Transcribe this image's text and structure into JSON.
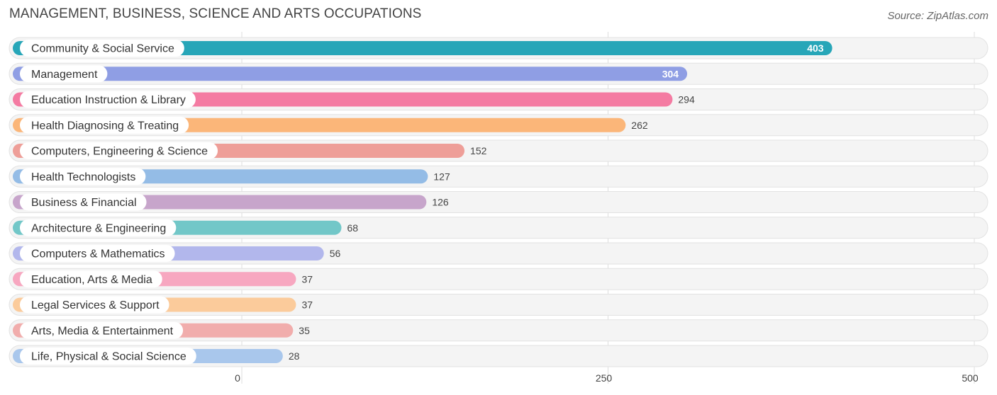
{
  "title": "MANAGEMENT, BUSINESS, SCIENCE AND ARTS OCCUPATIONS",
  "source": "Source: ZipAtlas.com",
  "chart_data": {
    "type": "bar",
    "orientation": "horizontal",
    "title": "MANAGEMENT, BUSINESS, SCIENCE AND ARTS OCCUPATIONS",
    "xlim": [
      0,
      500
    ],
    "x_ticks": [
      "0",
      "250",
      "500"
    ],
    "x_tick_values": [
      0,
      250,
      500
    ],
    "grid": true,
    "categories": [
      "Community & Social Service",
      "Management",
      "Education Instruction & Library",
      "Health Diagnosing & Treating",
      "Computers, Engineering & Science",
      "Health Technologists",
      "Business & Financial",
      "Architecture & Engineering",
      "Computers & Mathematics",
      "Education, Arts & Media",
      "Legal Services & Support",
      "Arts, Media & Entertainment",
      "Life, Physical & Social Science"
    ],
    "values": [
      403,
      304,
      294,
      262,
      152,
      127,
      126,
      68,
      56,
      37,
      37,
      35,
      28
    ],
    "value_labels": [
      "403",
      "304",
      "294",
      "262",
      "152",
      "127",
      "126",
      "68",
      "56",
      "37",
      "37",
      "35",
      "28"
    ],
    "colors": [
      "#27a6b8",
      "#8f9ee4",
      "#f47ba2",
      "#fbb679",
      "#ee9e98",
      "#94bce6",
      "#c7a5cb",
      "#72c7c8",
      "#b2b7ec",
      "#f7a7c0",
      "#fbcb9b",
      "#f1adac",
      "#a9c7ec"
    ]
  }
}
